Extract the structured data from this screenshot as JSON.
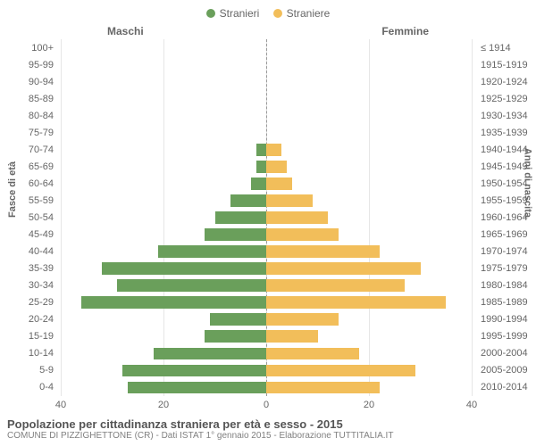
{
  "chart": {
    "type": "population-pyramid",
    "legend": [
      {
        "label": "Stranieri",
        "color": "#6a9f5b"
      },
      {
        "label": "Straniere",
        "color": "#f2be5a"
      }
    ],
    "header_left": "Maschi",
    "header_right": "Femmine",
    "y_left_title": "Fasce di età",
    "y_right_title": "Anni di nascita",
    "x_ticks": [
      40,
      20,
      0,
      20,
      40
    ],
    "x_max": 40,
    "grid_color": "#e6e6e6",
    "center_line_color": "#999999",
    "bands": [
      {
        "age": "100+",
        "birth": "≤ 1914",
        "m": 0,
        "f": 0
      },
      {
        "age": "95-99",
        "birth": "1915-1919",
        "m": 0,
        "f": 0
      },
      {
        "age": "90-94",
        "birth": "1920-1924",
        "m": 0,
        "f": 0
      },
      {
        "age": "85-89",
        "birth": "1925-1929",
        "m": 0,
        "f": 0
      },
      {
        "age": "80-84",
        "birth": "1930-1934",
        "m": 0,
        "f": 0
      },
      {
        "age": "75-79",
        "birth": "1935-1939",
        "m": 0,
        "f": 0
      },
      {
        "age": "70-74",
        "birth": "1940-1944",
        "m": 2,
        "f": 3
      },
      {
        "age": "65-69",
        "birth": "1945-1949",
        "m": 2,
        "f": 4
      },
      {
        "age": "60-64",
        "birth": "1950-1954",
        "m": 3,
        "f": 5
      },
      {
        "age": "55-59",
        "birth": "1955-1959",
        "m": 7,
        "f": 9
      },
      {
        "age": "50-54",
        "birth": "1960-1964",
        "m": 10,
        "f": 12
      },
      {
        "age": "45-49",
        "birth": "1965-1969",
        "m": 12,
        "f": 14
      },
      {
        "age": "40-44",
        "birth": "1970-1974",
        "m": 21,
        "f": 22
      },
      {
        "age": "35-39",
        "birth": "1975-1979",
        "m": 32,
        "f": 30
      },
      {
        "age": "30-34",
        "birth": "1980-1984",
        "m": 29,
        "f": 27
      },
      {
        "age": "25-29",
        "birth": "1985-1989",
        "m": 36,
        "f": 35
      },
      {
        "age": "20-24",
        "birth": "1990-1994",
        "m": 11,
        "f": 14
      },
      {
        "age": "15-19",
        "birth": "1995-1999",
        "m": 12,
        "f": 10
      },
      {
        "age": "10-14",
        "birth": "2000-2004",
        "m": 22,
        "f": 18
      },
      {
        "age": "5-9",
        "birth": "2005-2009",
        "m": 28,
        "f": 29
      },
      {
        "age": "0-4",
        "birth": "2010-2014",
        "m": 27,
        "f": 22
      }
    ],
    "title": "Popolazione per cittadinanza straniera per età e sesso - 2015",
    "subtitle": "COMUNE DI PIZZIGHETTONE (CR) - Dati ISTAT 1° gennaio 2015 - Elaborazione TUTTITALIA.IT"
  }
}
